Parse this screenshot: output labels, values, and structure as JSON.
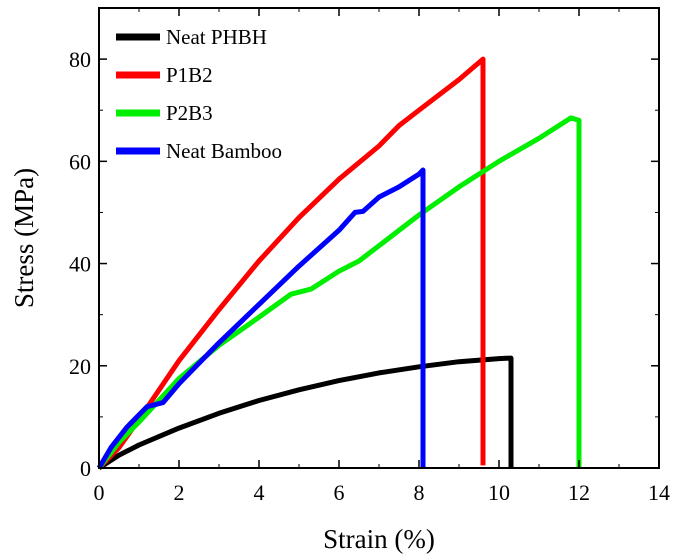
{
  "chart_data": {
    "type": "line",
    "title": "",
    "xlabel": "Strain (%)",
    "ylabel": "Stress (MPa)",
    "xlim": [
      0,
      14
    ],
    "ylim": [
      0,
      90
    ],
    "xticks": [
      0,
      2,
      4,
      6,
      8,
      10,
      12,
      14
    ],
    "yticks": [
      0,
      20,
      40,
      60,
      80
    ],
    "grid": false,
    "legend_position": "top-left",
    "series": [
      {
        "name": "Neat PHBH",
        "color": "#000000",
        "points": [
          [
            0,
            0
          ],
          [
            0.5,
            2.5
          ],
          [
            1,
            4.5
          ],
          [
            2,
            7.8
          ],
          [
            3,
            10.7
          ],
          [
            4,
            13.2
          ],
          [
            5,
            15.3
          ],
          [
            6,
            17.1
          ],
          [
            7,
            18.6
          ],
          [
            8,
            19.8
          ],
          [
            9,
            20.8
          ],
          [
            10,
            21.4
          ],
          [
            10.3,
            21.5
          ],
          [
            10.3,
            0
          ]
        ]
      },
      {
        "name": "P1B2",
        "color": "#ff0000",
        "points": [
          [
            0,
            0
          ],
          [
            0.5,
            4
          ],
          [
            1,
            9.5
          ],
          [
            2,
            21
          ],
          [
            3,
            31
          ],
          [
            4,
            40.5
          ],
          [
            5,
            49
          ],
          [
            6,
            56.5
          ],
          [
            7,
            63
          ],
          [
            7.5,
            67
          ],
          [
            8,
            70
          ],
          [
            9,
            76
          ],
          [
            9.6,
            80
          ],
          [
            9.6,
            0.5
          ]
        ]
      },
      {
        "name": "P2B3",
        "color": "#00ee00",
        "points": [
          [
            0,
            0
          ],
          [
            0.5,
            5
          ],
          [
            1,
            9
          ],
          [
            2,
            17.5
          ],
          [
            3,
            24
          ],
          [
            4,
            29.5
          ],
          [
            4.8,
            34
          ],
          [
            5.3,
            35
          ],
          [
            6,
            38.5
          ],
          [
            6.5,
            40.5
          ],
          [
            7,
            43.5
          ],
          [
            8,
            49.5
          ],
          [
            9,
            55
          ],
          [
            10,
            60
          ],
          [
            11,
            64.5
          ],
          [
            11.8,
            68.5
          ],
          [
            12,
            68
          ],
          [
            12,
            0
          ]
        ]
      },
      {
        "name": "Neat Bamboo",
        "color": "#0000ff",
        "points": [
          [
            0,
            0
          ],
          [
            0.3,
            4
          ],
          [
            0.7,
            8
          ],
          [
            1.2,
            12
          ],
          [
            1.6,
            12.8
          ],
          [
            2,
            16.5
          ],
          [
            3,
            24.5
          ],
          [
            4,
            32
          ],
          [
            5,
            39.5
          ],
          [
            6,
            46.5
          ],
          [
            6.4,
            50
          ],
          [
            6.6,
            50.2
          ],
          [
            7,
            53
          ],
          [
            7.5,
            55
          ],
          [
            8,
            57.5
          ],
          [
            8.1,
            58.3
          ],
          [
            8.1,
            0
          ]
        ]
      }
    ]
  }
}
